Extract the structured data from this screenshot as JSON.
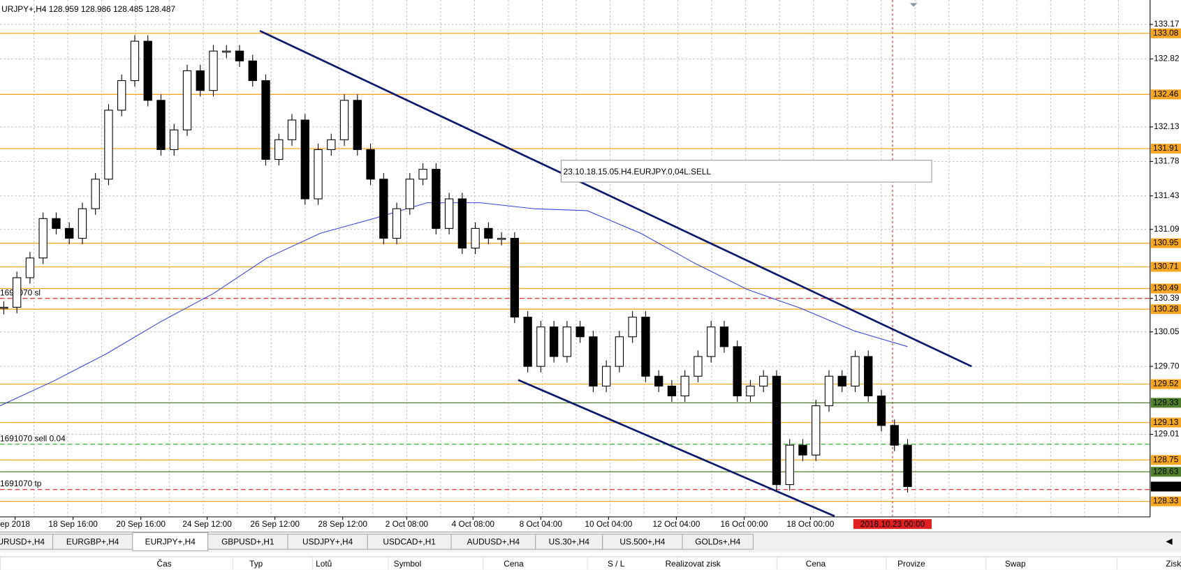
{
  "header": "URJPY+,H4  128.959 128.986 128.485 128.487",
  "annotation": "23.10.18.15.05.H4.EURJPY.0,04L.SELL",
  "chart": {
    "type": "candlestick",
    "ylim": [
      128.18,
      133.38
    ],
    "yticks": [
      133.17,
      132.82,
      132.13,
      131.78,
      131.43,
      131.09,
      130.39,
      130.05,
      {
        "value": 129.7,
        "label": "129.70"
      },
      129.01
    ],
    "closes": [
      130.3,
      130.6,
      130.8,
      131.2,
      131.1,
      131.0,
      131.3,
      131.6,
      132.3,
      132.6,
      133.0,
      132.4,
      131.9,
      132.1,
      132.7,
      132.5,
      132.9,
      132.9,
      132.8,
      132.6,
      131.8,
      132.0,
      132.2,
      131.4,
      131.9,
      132.0,
      132.4,
      131.9,
      131.6,
      131.0,
      131.3,
      131.6,
      131.7,
      131.1,
      131.4,
      130.9,
      131.1,
      131.0,
      131.0,
      130.2,
      129.7,
      130.1,
      129.8,
      130.1,
      130.0,
      129.5,
      129.7,
      130.0,
      130.2,
      129.6,
      129.5,
      129.4,
      129.6,
      129.8,
      130.1,
      129.9,
      129.4,
      129.5,
      129.6,
      128.5,
      128.9,
      128.8,
      129.3,
      129.6,
      129.5,
      129.8,
      129.4,
      129.1,
      128.9,
      128.48
    ],
    "ma": {
      "color": "#3344dd",
      "values": [
        129.3,
        129.55,
        129.83,
        130.15,
        130.44,
        130.8,
        131.05,
        131.2,
        131.36,
        131.36,
        131.3,
        131.28,
        131.05,
        130.75,
        130.48,
        130.29,
        130.06,
        129.9
      ]
    },
    "levels": [
      {
        "value": 133.08,
        "label": "133.08",
        "color": "#f5a623"
      },
      {
        "value": 132.46,
        "label": "132.46",
        "color": "#f5a623"
      },
      {
        "value": 131.91,
        "label": "131.91",
        "color": "#f5a623"
      },
      {
        "value": 130.95,
        "label": "130.95",
        "color": "#f5a623"
      },
      {
        "value": 130.71,
        "label": "130.71",
        "color": "#f5a623"
      },
      {
        "value": 130.49,
        "label": "130.49",
        "color": "#f5a623"
      },
      {
        "value": 130.28,
        "label": "130.28",
        "color": "#f5a623"
      },
      {
        "value": 129.52,
        "label": "129.52",
        "color": "#f5a623"
      },
      {
        "value": 129.33,
        "label": "129.33",
        "color": "#4f7f2a"
      },
      {
        "value": 129.13,
        "label": "129.13",
        "color": "#f5a623"
      },
      {
        "value": 128.75,
        "label": "128.75",
        "color": "#f5a623"
      },
      {
        "value": 128.63,
        "label": "128.63",
        "color": "#4f7f2a"
      },
      {
        "value": 128.48,
        "label": "128.48",
        "color": "#000000"
      },
      {
        "value": 128.33,
        "label": "128.33",
        "color": "#f5a623"
      }
    ],
    "orders": [
      {
        "label": "1691070 sl",
        "value": 130.39,
        "color": "#e02020"
      },
      {
        "label": "1691070 sell 0.04",
        "value": 128.91,
        "color": "#22aa22"
      },
      {
        "label": "1691070 tp",
        "value": 128.45,
        "color": "#e02020"
      }
    ],
    "xlabels": [
      "ep 2018",
      "18 Sep 16:00",
      "20 Sep 16:00",
      "24 Sep 12:00",
      "26 Sep 12:00",
      "28 Sep 12:00",
      "2 Oct 08:00",
      "4 Oct 08:00",
      "8 Oct 04:00",
      "10 Oct 04:00",
      "12 Oct 04:00",
      "16 Oct 00:00",
      "18 Oct 00:00"
    ],
    "now_label": "2018.10.23 00:00"
  },
  "tabs": [
    "URUSD+,H4",
    "EURGBP+,H4",
    "EURJPY+,H4",
    "GBPUSD+,H1",
    "USDJPY+,H4",
    "USDCAD+,H1",
    "AUDUSD+,H4",
    "US.30+,H4",
    "US.500+,H4",
    "GOLDs+,H4"
  ],
  "columns": [
    "Čas",
    "Typ",
    "Lotů",
    "Symbol",
    "Cena",
    "S / L",
    "Realizovat zisk",
    "Cena",
    "Provize",
    "Swap",
    "Zisk"
  ]
}
